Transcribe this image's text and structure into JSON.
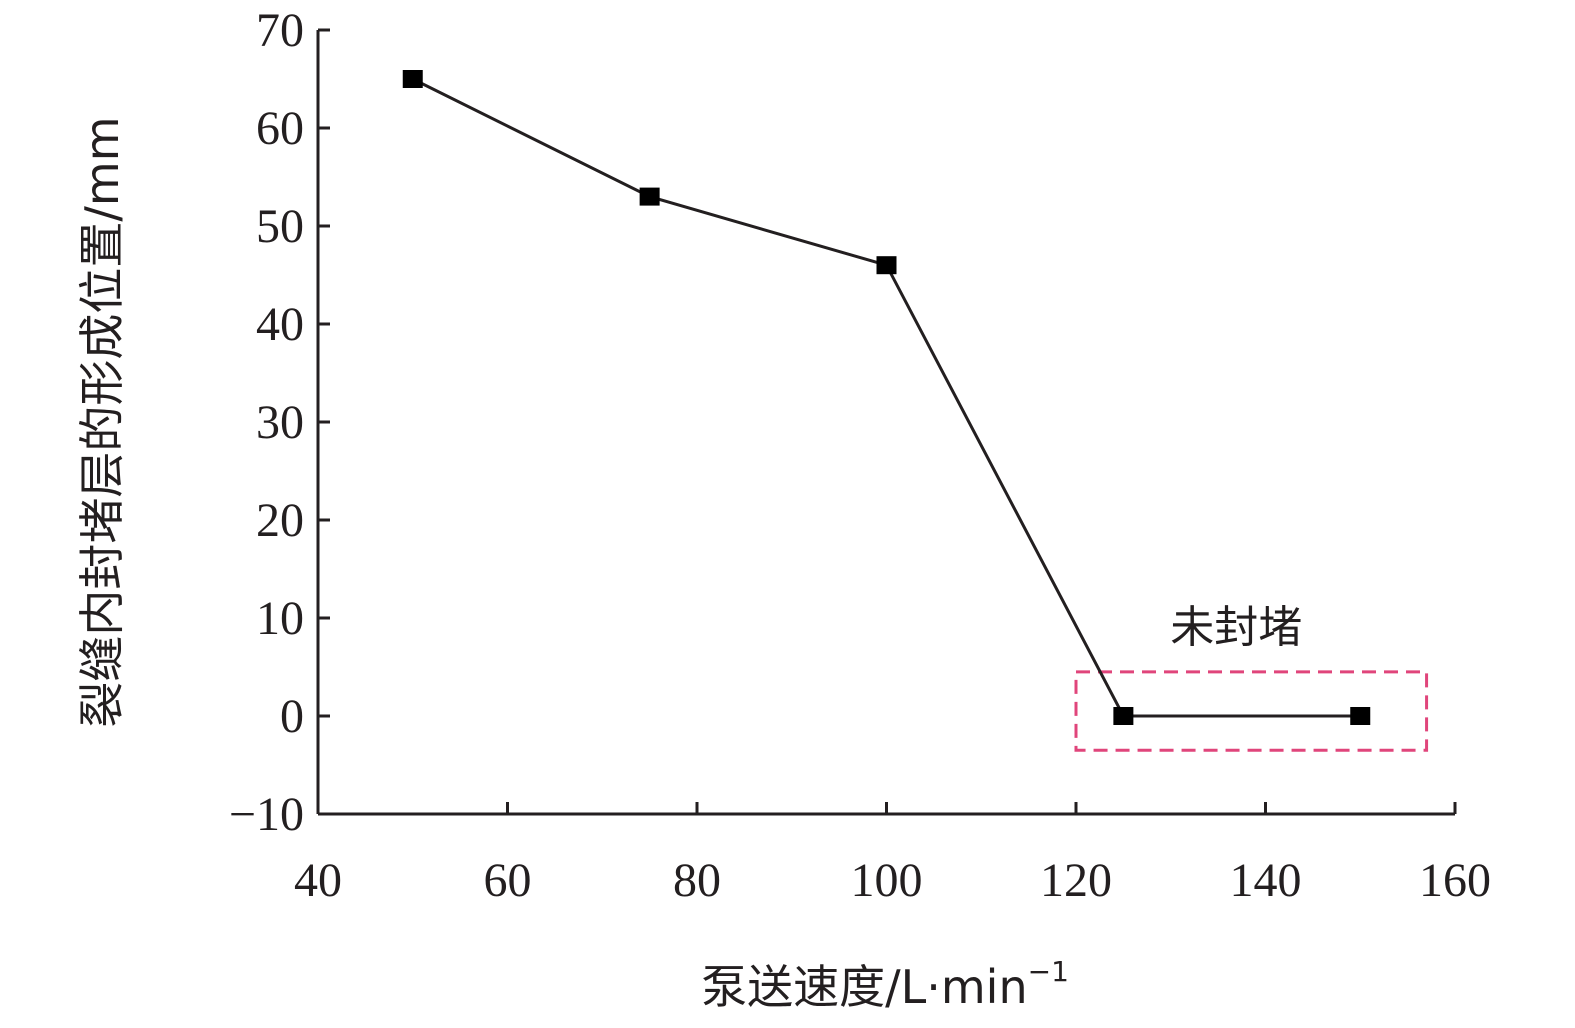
{
  "chart_data": {
    "type": "line",
    "x": [
      50,
      75,
      100,
      125,
      150
    ],
    "series": [
      {
        "values": [
          65,
          53,
          46,
          0,
          0
        ]
      }
    ],
    "xlabel": "泵送速度/L·min",
    "xlabel_sup": "−1",
    "ylabel": "裂缝内封堵层的形成位置/mm",
    "xlim": [
      40,
      160
    ],
    "ylim": [
      -10,
      70
    ],
    "xticks": [
      40,
      60,
      80,
      100,
      120,
      140,
      160
    ],
    "yticks": [
      70,
      60,
      50,
      40,
      30,
      20,
      10,
      0,
      -10
    ],
    "ytick_labels": [
      "70",
      "60",
      "50",
      "40",
      "30",
      "20",
      "10",
      "0",
      "−10"
    ],
    "grid": false,
    "annotation": {
      "text": "未封堵",
      "box_x": [
        120,
        157
      ],
      "box_y": [
        -3.5,
        4.5
      ],
      "box_color": "#e0457b"
    },
    "line_color": "#231f20",
    "marker": "square"
  }
}
